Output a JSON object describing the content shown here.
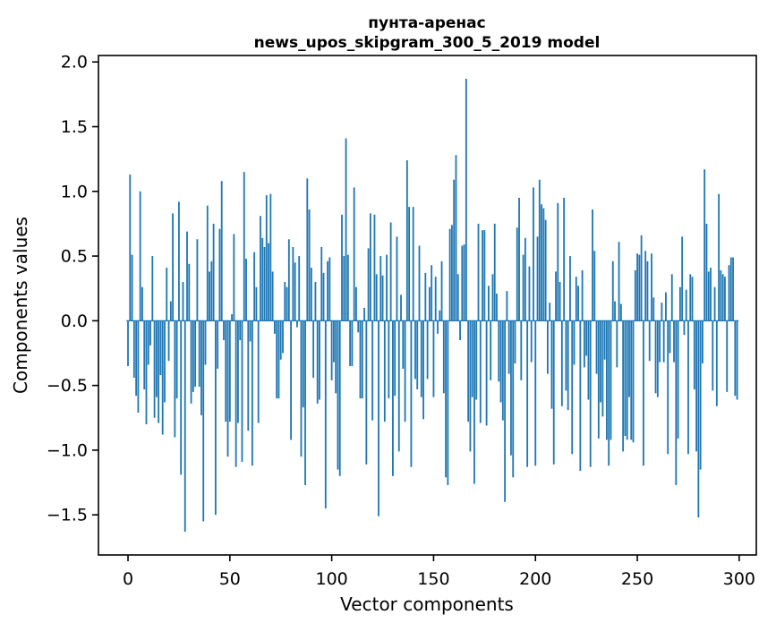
{
  "title": {
    "line1": "пунта-аренас",
    "line2": "news_upos_skipgram_300_5_2019 model"
  },
  "chart_data": {
    "type": "bar",
    "title": "пунта-аренас\nnews_upos_skipgram_300_5_2019 model",
    "xlabel": "Vector components",
    "ylabel": "Components values",
    "n_components": 300,
    "bar_color": "#1f77b4",
    "axis_color": "#000000",
    "grid": false,
    "legend_position": "none",
    "xlim": [
      -14.5,
      308.4
    ],
    "ylim": [
      -1.81,
      2.05
    ],
    "xticks": [
      0,
      50,
      100,
      150,
      200,
      250,
      300
    ],
    "xtick_labels": [
      "0",
      "50",
      "100",
      "150",
      "200",
      "250",
      "300"
    ],
    "ytick_values": [
      2.0,
      1.5,
      1.0,
      0.5,
      0.0,
      -0.5,
      -1.0,
      -1.5
    ],
    "ytick_labels": [
      "2.0",
      "1.5",
      "1.0",
      "0.5",
      "0.0",
      "−0.5",
      "−1.0",
      "−1.5"
    ],
    "bar_rel_width": 0.8,
    "values": [
      -0.35,
      1.13,
      0.51,
      -0.44,
      -0.58,
      -0.71,
      1.0,
      0.26,
      -0.53,
      -0.8,
      -0.34,
      -0.19,
      0.5,
      -0.75,
      -0.59,
      -0.79,
      -0.42,
      -0.88,
      -0.63,
      0.41,
      -0.31,
      0.15,
      0.83,
      -0.9,
      -0.6,
      0.92,
      -1.19,
      0.3,
      -1.63,
      0.69,
      0.44,
      -0.64,
      -0.55,
      -0.51,
      0.63,
      -0.51,
      -0.73,
      -1.55,
      -0.34,
      0.89,
      0.38,
      0.46,
      0.75,
      -1.5,
      -0.37,
      0.71,
      1.08,
      -0.15,
      -0.78,
      -1.05,
      -0.78,
      0.05,
      0.67,
      -1.13,
      -0.79,
      -0.15,
      -1.09,
      1.15,
      0.48,
      -0.85,
      -0.16,
      -1.12,
      0.53,
      0.26,
      -0.79,
      0.81,
      0.64,
      0.57,
      0.97,
      0.6,
      0.98,
      0.38,
      -0.1,
      -0.6,
      -0.6,
      -0.3,
      -0.25,
      0.3,
      0.26,
      0.63,
      -0.92,
      0.57,
      0.45,
      -0.05,
      0.5,
      -1.05,
      -0.67,
      -1.27,
      1.1,
      0.86,
      0.41,
      -0.44,
      0.3,
      -0.64,
      -0.61,
      0.57,
      0.37,
      -1.45,
      0.46,
      0.49,
      -0.46,
      -0.32,
      -0.56,
      -1.15,
      -1.2,
      0.82,
      0.5,
      1.41,
      0.51,
      -0.35,
      -0.35,
      1.03,
      0.26,
      -0.09,
      -0.6,
      -0.6,
      0.1,
      -1.11,
      0.56,
      0.83,
      -0.77,
      0.82,
      0.36,
      -1.51,
      0.5,
      0.35,
      -0.78,
      0.51,
      -0.6,
      0.76,
      -1.2,
      -0.58,
      0.65,
      -1.01,
      0.2,
      -0.37,
      -0.78,
      1.24,
      0.88,
      -1.13,
      0.88,
      -0.45,
      -0.53,
      0.58,
      -0.59,
      -0.76,
      0.37,
      -0.45,
      0.26,
      0.43,
      -0.59,
      0.34,
      -0.1,
      0.08,
      0.46,
      -0.56,
      -1.21,
      -1.27,
      0.71,
      0.74,
      1.09,
      1.28,
      0.36,
      -0.15,
      0.58,
      0.59,
      1.87,
      -0.78,
      -1.01,
      -0.59,
      -1.26,
      -0.61,
      0.75,
      -0.79,
      0.7,
      0.7,
      -0.81,
      0.27,
      -0.46,
      0.36,
      0.75,
      0.21,
      -0.47,
      -0.63,
      -0.77,
      -1.4,
      0.23,
      -0.41,
      -1.04,
      -1.21,
      -0.33,
      0.72,
      0.95,
      -0.46,
      0.51,
      0.64,
      -1.13,
      0.42,
      -0.32,
      1.03,
      -1.12,
      0.65,
      1.09,
      0.9,
      0.87,
      0.78,
      -0.41,
      0.14,
      -0.68,
      -1.11,
      0.38,
      0.91,
      0.3,
      -0.66,
      0.95,
      -0.54,
      -0.69,
      0.5,
      -1.03,
      -0.34,
      0.34,
      0.27,
      -1.16,
      0.39,
      -0.36,
      -0.27,
      -0.61,
      -1.13,
      0.86,
      0.54,
      -0.41,
      -0.91,
      -0.63,
      -0.74,
      -0.3,
      -0.92,
      -1.12,
      -0.92,
      0.46,
      0.15,
      -0.36,
      0.61,
      0.13,
      -1.01,
      -0.89,
      -0.92,
      -0.59,
      -0.92,
      -0.94,
      0.39,
      0.52,
      0.51,
      0.66,
      -1.12,
      0.54,
      0.46,
      -0.31,
      0.52,
      0.18,
      -0.56,
      -0.59,
      -0.32,
      0.14,
      -0.32,
      0.22,
      -1.03,
      -0.25,
      0.36,
      -0.32,
      -1.27,
      -0.91,
      0.26,
      0.65,
      -0.11,
      0.24,
      -1.03,
      0.36,
      0.34,
      -0.53,
      -1.01,
      -1.52,
      -1.15,
      -0.33,
      1.17,
      0.75,
      0.38,
      0.41,
      -0.54,
      0.26,
      -0.66,
      0.98,
      0.39,
      0.36,
      0.34,
      -0.55,
      0.43,
      0.49,
      0.49,
      -0.58,
      -0.61
    ]
  }
}
